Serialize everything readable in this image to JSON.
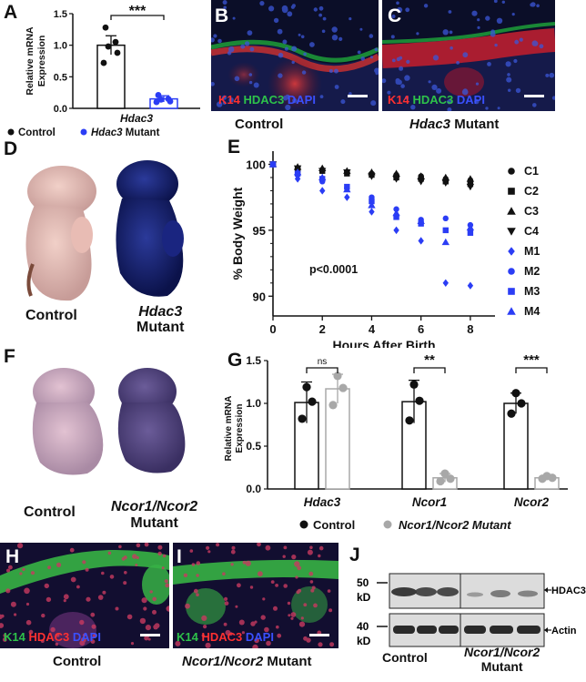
{
  "panels": {
    "A": "A",
    "B": "B",
    "C": "C",
    "D": "D",
    "E": "E",
    "F": "F",
    "G": "G",
    "H": "H",
    "I": "I",
    "J": "J"
  },
  "stain_k14_hdac3_dapi": {
    "k14": "K14",
    "hdac3": "HDAC3",
    "dapi": "DAPI"
  },
  "stain_k14_hdac3_dapi_2": {
    "k14": "K14",
    "hdac3": "HDAC3",
    "dapi": "DAPI"
  },
  "captions": {
    "b_control": "Control",
    "c_mutant_gene": "Hdac3",
    "c_mutant_word": "Mutant",
    "d_control": "Control",
    "d_mutant_gene": "Hdac3",
    "d_mutant_word": "Mutant",
    "f_control": "Control",
    "f_mutant_gene": "Ncor1/Ncor2",
    "f_mutant_word": "Mutant",
    "h_control": "Control",
    "i_mutant_gene": "Ncor1/Ncor2",
    "i_mutant_word": "Mutant",
    "j_control": "Control",
    "j_mutant_gene": "Ncor1/Ncor2",
    "j_mutant_word": "Mutant"
  },
  "colors": {
    "blue": "#2b3df5",
    "gray": "#a8a8a8",
    "black": "#111111"
  },
  "chart_data": [
    {
      "panel": "A",
      "type": "bar",
      "categories": [
        "Control",
        "Hdac3 Mutant"
      ],
      "values": [
        1.0,
        0.15
      ],
      "error": [
        0.15,
        0.05
      ],
      "points": [
        [
          1.28,
          1.05,
          0.98,
          0.88,
          0.72
        ],
        [
          0.21,
          0.15,
          0.14,
          0.11,
          0.1
        ]
      ],
      "ylabel": "Relative mRNA Expression",
      "xlabel": "Hdac3",
      "yticks": [
        "0.0",
        "0.5",
        "1.0",
        "1.5"
      ],
      "ylim": [
        0,
        1.5
      ],
      "significance": "***",
      "legend": [
        {
          "name": "Control",
          "color": "#111111"
        },
        {
          "name_italic": "Hdac3",
          "name": "Mutant",
          "color": "#2b3df5"
        }
      ]
    },
    {
      "panel": "E",
      "type": "scatter",
      "xlabel": "Hours After Birth",
      "ylabel": "% Body Weight",
      "xticks": [
        "0",
        "2",
        "4",
        "6",
        "8"
      ],
      "yticks": [
        "90",
        "95",
        "100"
      ],
      "xlim": [
        0,
        9
      ],
      "ylim": [
        88.5,
        101
      ],
      "annotation": "p<0.0001",
      "series": [
        {
          "name": "C1",
          "marker": "circle",
          "color": "#111111",
          "x": [
            0,
            1,
            2,
            3,
            4,
            5,
            6,
            7,
            8
          ],
          "y": [
            100,
            99.7,
            99.6,
            99.4,
            99.3,
            99.2,
            99.1,
            98.9,
            98.8
          ]
        },
        {
          "name": "C2",
          "marker": "square",
          "color": "#111111",
          "x": [
            0,
            1,
            2,
            3,
            4,
            5,
            6,
            7,
            8
          ],
          "y": [
            100,
            99.6,
            99.5,
            99.3,
            99.2,
            99.0,
            98.9,
            98.7,
            98.5
          ]
        },
        {
          "name": "C3",
          "marker": "triangle-up",
          "color": "#111111",
          "x": [
            0,
            1,
            2,
            3,
            4,
            5,
            6,
            7,
            8
          ],
          "y": [
            100,
            99.8,
            99.7,
            99.5,
            99.4,
            99.3,
            99.1,
            99.0,
            98.9
          ]
        },
        {
          "name": "C4",
          "marker": "triangle-down",
          "color": "#111111",
          "x": [
            0,
            1,
            2,
            3,
            4,
            5,
            6,
            7,
            8
          ],
          "y": [
            100,
            99.7,
            99.5,
            99.4,
            99.1,
            98.9,
            98.7,
            98.6,
            98.3
          ]
        },
        {
          "name": "M1",
          "marker": "diamond",
          "color": "#2b3df5",
          "x": [
            0,
            1,
            2,
            3,
            4,
            5,
            6,
            7,
            8
          ],
          "y": [
            100,
            98.9,
            98.0,
            97.5,
            96.4,
            95.0,
            94.2,
            91.0,
            90.8
          ]
        },
        {
          "name": "M2",
          "marker": "circle",
          "color": "#2b3df5",
          "x": [
            0,
            1,
            2,
            3,
            4,
            5,
            6,
            7,
            8
          ],
          "y": [
            100,
            99.2,
            98.7,
            98.2,
            97.5,
            96.6,
            95.8,
            95.9,
            95.4
          ]
        },
        {
          "name": "M3",
          "marker": "square",
          "color": "#2b3df5",
          "x": [
            0,
            1,
            2,
            3,
            4,
            5,
            6,
            7,
            8
          ],
          "y": [
            100,
            99.3,
            98.9,
            98.3,
            97.2,
            96.0,
            95.5,
            95.0,
            94.8
          ]
        },
        {
          "name": "M4",
          "marker": "triangle-up",
          "color": "#2b3df5",
          "x": [
            0,
            1,
            2,
            3,
            4,
            5,
            6,
            7,
            8
          ],
          "y": [
            100,
            99.4,
            99.0,
            98.1,
            96.9,
            96.3,
            95.7,
            94.1,
            95.2
          ]
        }
      ]
    },
    {
      "panel": "G",
      "type": "bar",
      "ylabel": "Relative mRNA Expression",
      "yticks": [
        "0.0",
        "0.5",
        "1.0",
        "1.5"
      ],
      "ylim": [
        0,
        1.5
      ],
      "groups": [
        {
          "name": "Hdac3",
          "control": 1.01,
          "mutant": 1.17,
          "c_err": 0.24,
          "m_err": 0.17,
          "c_pts": [
            1.19,
            1.02,
            0.82
          ],
          "m_pts": [
            1.32,
            1.18,
            0.98
          ],
          "sig": "ns"
        },
        {
          "name": "Ncor1",
          "control": 1.02,
          "mutant": 0.13,
          "c_err": 0.25,
          "m_err": 0.05,
          "c_pts": [
            1.22,
            1.03,
            0.8
          ],
          "m_pts": [
            0.18,
            0.12,
            0.09
          ],
          "sig": "**"
        },
        {
          "name": "Ncor2",
          "control": 1.0,
          "mutant": 0.13,
          "c_err": 0.12,
          "m_err": 0.02,
          "c_pts": [
            1.12,
            1.0,
            0.88
          ],
          "m_pts": [
            0.15,
            0.13,
            0.12
          ],
          "sig": "***"
        }
      ],
      "legend": [
        {
          "name": "Control",
          "color": "#111111"
        },
        {
          "name": "Ncor1/Ncor2 Mutant",
          "color": "#a8a8a8"
        }
      ]
    }
  ],
  "blot": {
    "markers": [
      "50",
      "kD",
      "40",
      "kD"
    ],
    "bands": [
      "HDAC3",
      "Actin"
    ]
  }
}
